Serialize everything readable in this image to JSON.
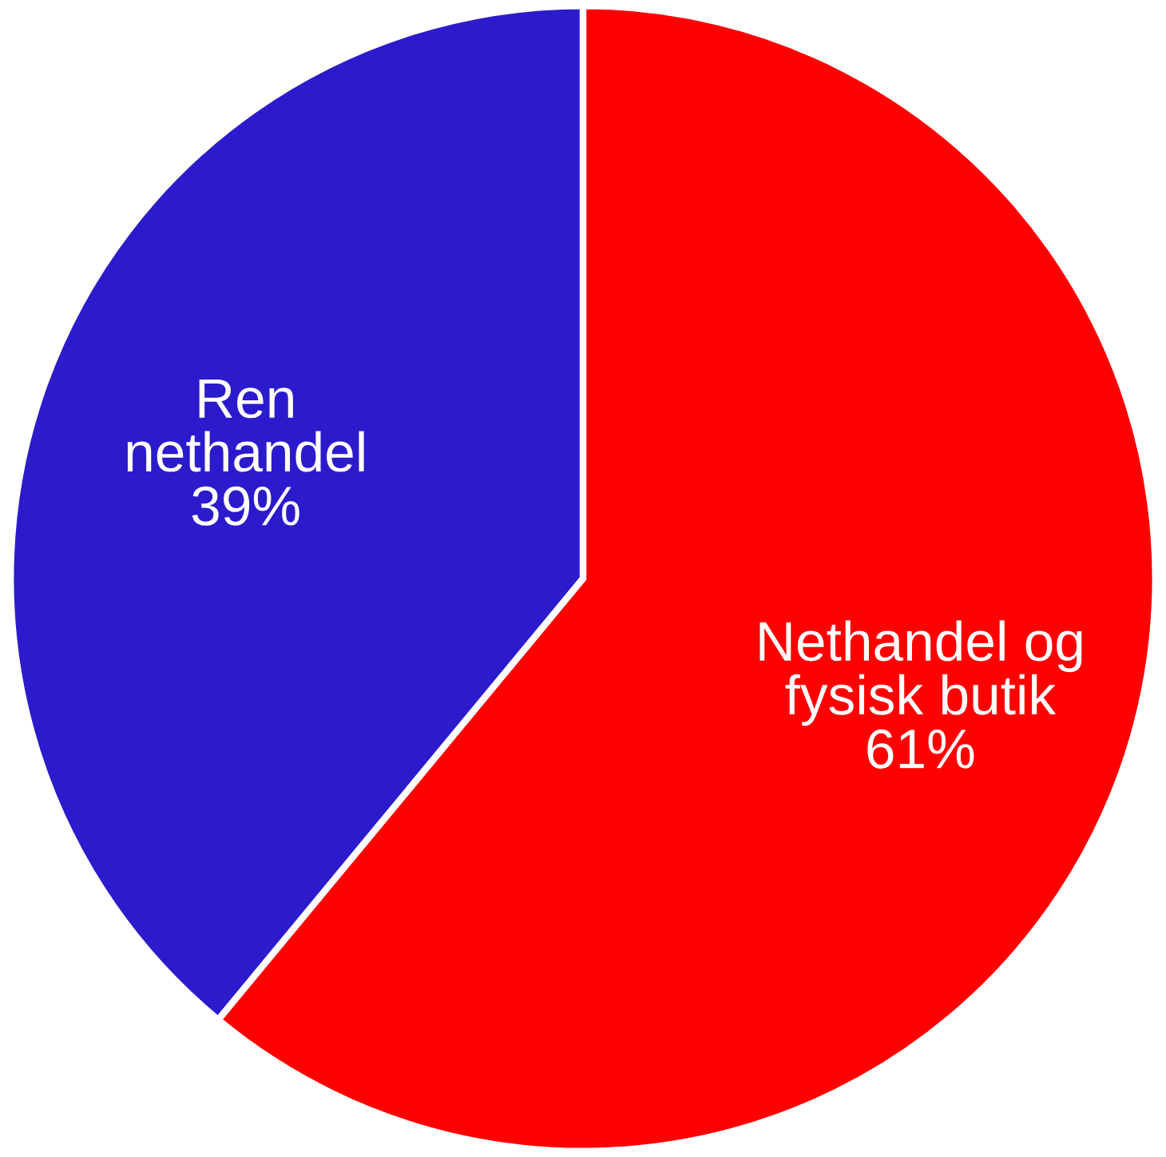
{
  "chart_data": {
    "type": "pie",
    "categories": [
      "Nethandel og\nfysisk butik",
      "Ren\nnethandel"
    ],
    "values": [
      61,
      39
    ],
    "value_labels": [
      "61%",
      "39%"
    ],
    "colors": [
      "#ff0000",
      "#2b1bcc"
    ]
  }
}
